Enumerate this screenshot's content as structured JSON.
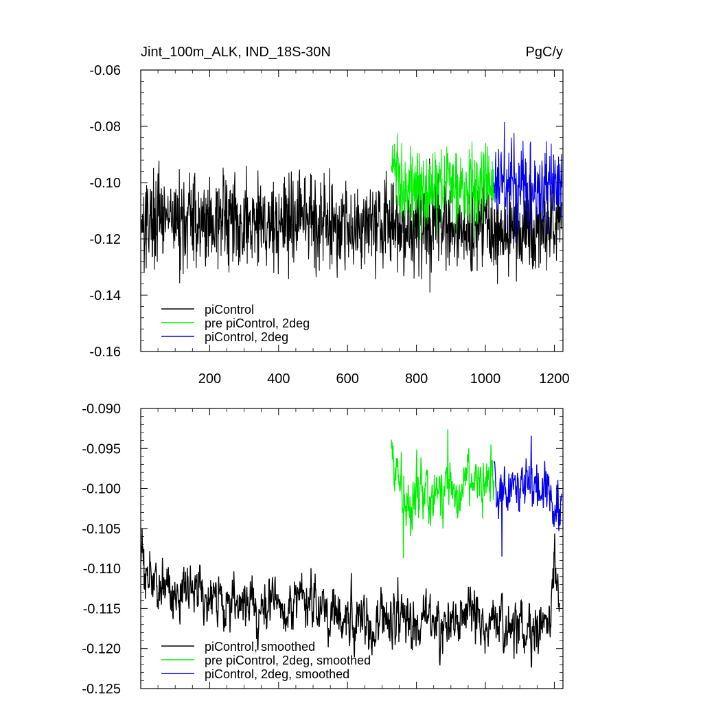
{
  "chart_data": [
    {
      "type": "line",
      "title_left": "Jint_100m_ALK, IND_18S-30N",
      "title_right": "PgC/y",
      "xlim": [
        0,
        1225
      ],
      "ylim": [
        -0.16,
        -0.06
      ],
      "x_ticks": [
        200,
        400,
        600,
        800,
        1000,
        1200
      ],
      "y_ticks": [
        -0.16,
        -0.14,
        -0.12,
        -0.1,
        -0.08,
        -0.06
      ],
      "y_tick_labels": [
        "-0.16",
        "-0.14",
        "-0.12",
        "-0.10",
        "-0.08",
        "-0.06"
      ],
      "legend_position": "bottom-left",
      "series": [
        {
          "name": "piControl",
          "color": "#000000",
          "x": [
            1,
            50,
            100,
            150,
            200,
            250,
            300,
            350,
            400,
            450,
            500,
            550,
            600,
            650,
            700,
            750,
            800,
            850,
            900,
            950,
            1000,
            1050,
            1100,
            1150,
            1200,
            1222
          ],
          "y": [
            -0.112,
            -0.113,
            -0.114,
            -0.113,
            -0.114,
            -0.113,
            -0.115,
            -0.114,
            -0.114,
            -0.114,
            -0.113,
            -0.114,
            -0.115,
            -0.114,
            -0.115,
            -0.116,
            -0.116,
            -0.115,
            -0.115,
            -0.116,
            -0.116,
            -0.117,
            -0.116,
            -0.116,
            -0.115,
            -0.114
          ]
        },
        {
          "name": "pre piControl, 2deg",
          "color": "#00ee00",
          "x": [
            727,
            760,
            800,
            850,
            900,
            950,
            1000,
            1025
          ],
          "y": [
            -0.093,
            -0.101,
            -0.102,
            -0.101,
            -0.1,
            -0.101,
            -0.1,
            -0.101
          ]
        },
        {
          "name": "piControl, 2deg",
          "color": "#0000ee",
          "x": [
            1025,
            1060,
            1100,
            1140,
            1180,
            1222
          ],
          "y": [
            -0.1,
            -0.1,
            -0.101,
            -0.1,
            -0.101,
            -0.102
          ]
        }
      ]
    },
    {
      "type": "line",
      "xlim": [
        0,
        1225
      ],
      "ylim": [
        -0.125,
        -0.09
      ],
      "y_ticks": [
        -0.125,
        -0.12,
        -0.115,
        -0.11,
        -0.105,
        -0.1,
        -0.095,
        -0.09
      ],
      "y_tick_labels": [
        "-0.125",
        "-0.120",
        "-0.115",
        "-0.110",
        "-0.105",
        "-0.100",
        "-0.095",
        "-0.090"
      ],
      "legend_position": "bottom-left",
      "series": [
        {
          "name": "piControl, smoothed",
          "color": "#000000",
          "x": [
            1,
            20,
            50,
            100,
            150,
            200,
            250,
            300,
            350,
            400,
            450,
            500,
            550,
            600,
            650,
            700,
            750,
            800,
            850,
            900,
            950,
            1000,
            1050,
            1100,
            1150,
            1190,
            1200,
            1215
          ],
          "y": [
            -0.109,
            -0.111,
            -0.112,
            -0.113,
            -0.113,
            -0.114,
            -0.115,
            -0.114,
            -0.115,
            -0.114,
            -0.114,
            -0.114,
            -0.114,
            -0.116,
            -0.117,
            -0.117,
            -0.116,
            -0.116,
            -0.117,
            -0.117,
            -0.116,
            -0.116,
            -0.117,
            -0.117,
            -0.118,
            -0.116,
            -0.109,
            -0.115
          ]
        },
        {
          "name": "pre piControl, 2deg, smoothed",
          "color": "#00ee00",
          "x": [
            727,
            740,
            760,
            800,
            850,
            900,
            950,
            1000,
            1025
          ],
          "y": [
            -0.094,
            -0.097,
            -0.102,
            -0.101,
            -0.101,
            -0.1,
            -0.099,
            -0.1,
            -0.1
          ],
          "min_y": -0.1087,
          "max_y": -0.0926
        },
        {
          "name": "piControl, 2deg, smoothed",
          "color": "#0000ee",
          "x": [
            1025,
            1060,
            1100,
            1140,
            1180,
            1200,
            1222
          ],
          "y": [
            -0.1,
            -0.099,
            -0.1,
            -0.1,
            -0.099,
            -0.103,
            -0.101
          ],
          "min_y": -0.1085,
          "max_y": -0.0934
        }
      ]
    }
  ]
}
